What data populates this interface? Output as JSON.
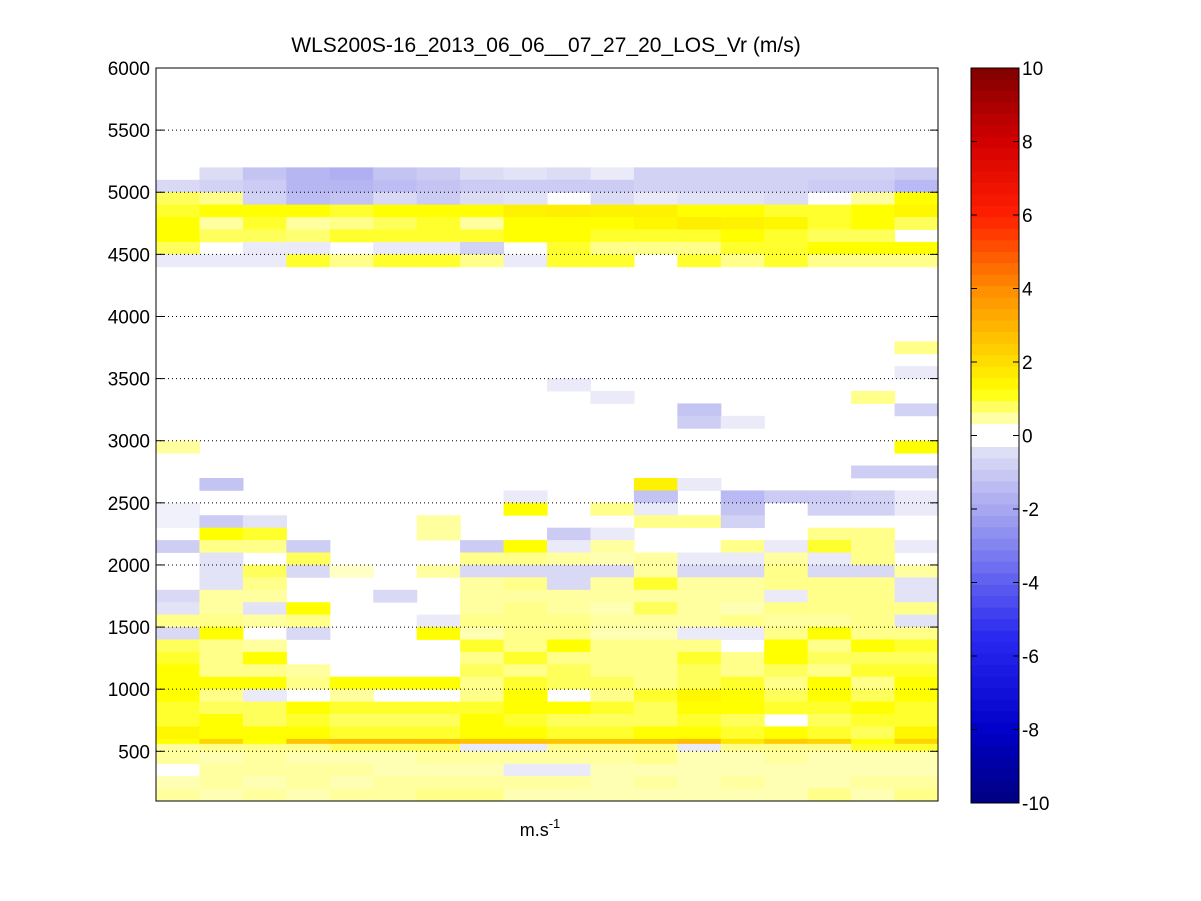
{
  "chart_data": {
    "type": "heatmap",
    "title": "WLS200S-16_2013_06_06__07_27_20_LOS_Vr (m/s)",
    "xlabel": "m.s",
    "xlabel_superscript": "-1",
    "ylabel": "",
    "ylim": [
      100,
      6000
    ],
    "y_ticks": [
      500,
      1000,
      1500,
      2000,
      2500,
      3000,
      3500,
      4000,
      4500,
      5000,
      5500,
      6000
    ],
    "grid": "dotted horizontal lines at y ticks",
    "colorbar": {
      "label": "",
      "range": [
        -10,
        10
      ],
      "ticks": [
        -10,
        -8,
        -6,
        -4,
        -2,
        0,
        2,
        4,
        6,
        8,
        10
      ],
      "colormap": "blue-white-yellow-red (diverging)"
    },
    "num_columns": 18,
    "bands": [
      {
        "y0": 5100,
        "y1": 5200,
        "values": [
          0,
          -0.5,
          -1.2,
          -1.6,
          -1.8,
          -1.2,
          -1,
          -0.5,
          -0.4,
          -0.5,
          -0.3,
          -0.8,
          -0.8,
          -0.8,
          -0.8,
          -0.8,
          -0.8,
          -1
        ]
      },
      {
        "y0": 5000,
        "y1": 5100,
        "values": [
          -0.6,
          -0.8,
          -1,
          -1.6,
          -1.6,
          -1.4,
          -1.2,
          -1,
          -1,
          -1,
          -1,
          -0.8,
          -0.8,
          -0.8,
          -0.8,
          -1,
          -1,
          -1.5
        ]
      },
      {
        "y0": 4900,
        "y1": 5000,
        "values": [
          0.8,
          0.6,
          -0.8,
          -1.4,
          -1.2,
          -0.6,
          -1,
          -0.5,
          -0.4,
          0,
          -0.5,
          -0.3,
          -0.4,
          -0.4,
          -0.5,
          0,
          0.5,
          1.2
        ]
      },
      {
        "y0": 4800,
        "y1": 4900,
        "values": [
          1,
          1.2,
          1.2,
          1.2,
          1,
          1.2,
          1.2,
          1.2,
          1.5,
          1.6,
          1.5,
          1.5,
          1.2,
          1.2,
          1,
          1,
          1.2,
          1.4
        ]
      },
      {
        "y0": 4700,
        "y1": 4800,
        "values": [
          1.2,
          0.5,
          1,
          0.5,
          0.6,
          0.8,
          1,
          0.5,
          1.2,
          1.2,
          1.2,
          1.4,
          1.6,
          1.5,
          1.4,
          1,
          1.2,
          0.8
        ]
      },
      {
        "y0": 4600,
        "y1": 4700,
        "values": [
          1.2,
          0.8,
          0.8,
          0.7,
          1,
          1,
          1,
          1,
          1.2,
          1.2,
          1,
          1,
          1,
          1.2,
          1,
          0.8,
          0.8,
          0
        ]
      },
      {
        "y0": 4500,
        "y1": 4600,
        "values": [
          0.8,
          0,
          -0.3,
          -0.3,
          0,
          -0.3,
          -0.3,
          -0.8,
          0,
          1,
          0.6,
          0.6,
          0.6,
          1,
          1,
          1.2,
          1.2,
          1.2
        ]
      },
      {
        "y0": 4400,
        "y1": 4500,
        "values": [
          -0.3,
          -0.3,
          -0.3,
          1,
          0.6,
          1,
          1,
          0.6,
          -0.3,
          1,
          1,
          0,
          1,
          0.6,
          1,
          0.6,
          0.6,
          0.6
        ]
      },
      {
        "y0": 3700,
        "y1": 3800,
        "values": [
          0,
          0,
          0,
          0,
          0,
          0,
          0,
          0,
          0,
          0,
          0,
          0,
          0,
          0,
          0,
          0,
          0,
          0.6
        ]
      },
      {
        "y0": 3500,
        "y1": 3600,
        "values": [
          0,
          0,
          0,
          0,
          0,
          0,
          0,
          0,
          0,
          0,
          0,
          0,
          0,
          0,
          0,
          0,
          0,
          -0.3
        ]
      },
      {
        "y0": 3400,
        "y1": 3500,
        "values": [
          0,
          0,
          0,
          0,
          0,
          0,
          0,
          0,
          0,
          -0.3,
          0,
          0,
          0,
          0,
          0,
          0,
          0,
          0
        ]
      },
      {
        "y0": 3300,
        "y1": 3400,
        "values": [
          0,
          0,
          0,
          0,
          0,
          0,
          0,
          0,
          0,
          0,
          -0.3,
          0,
          0,
          0,
          0,
          0,
          0.6,
          0
        ]
      },
      {
        "y0": 3200,
        "y1": 3300,
        "values": [
          0,
          0,
          0,
          0,
          0,
          0,
          0,
          0,
          0,
          0,
          0,
          0,
          -1.2,
          0,
          0,
          0,
          0,
          -0.8
        ]
      },
      {
        "y0": 3100,
        "y1": 3200,
        "values": [
          0,
          0,
          0,
          0,
          0,
          0,
          0,
          0,
          0,
          0,
          0,
          0,
          -0.9,
          -0.3,
          0,
          0,
          0,
          0
        ]
      },
      {
        "y0": 2900,
        "y1": 3000,
        "values": [
          0.5,
          0,
          0,
          0,
          0,
          0,
          0,
          0,
          0,
          0,
          0,
          0,
          0,
          0,
          0,
          0,
          0,
          1.2
        ]
      },
      {
        "y0": 2700,
        "y1": 2800,
        "values": [
          0,
          0,
          0,
          0,
          0,
          0,
          0,
          0,
          0,
          0,
          0,
          0,
          0,
          0,
          0,
          0,
          -0.9,
          -0.9
        ]
      },
      {
        "y0": 2600,
        "y1": 2700,
        "values": [
          0,
          -1.2,
          0,
          0,
          0,
          0,
          0,
          0,
          0,
          0,
          0,
          1.5,
          -0.3,
          0,
          0,
          0,
          0,
          0
        ]
      },
      {
        "y0": 2500,
        "y1": 2600,
        "values": [
          0,
          0,
          0,
          0,
          0,
          0,
          0,
          0,
          -0.3,
          0,
          0,
          -1.2,
          0,
          -1.5,
          -1,
          -1,
          -0.8,
          -0.3
        ]
      },
      {
        "y0": 2400,
        "y1": 2500,
        "values": [
          -0.2,
          0,
          0,
          0,
          0,
          0,
          0,
          0,
          1.2,
          0,
          0.6,
          -0.3,
          0,
          -1.2,
          0,
          -0.8,
          -0.8,
          -0.3
        ]
      },
      {
        "y0": 2300,
        "y1": 2400,
        "values": [
          -0.2,
          -1,
          -0.4,
          0,
          0,
          0,
          0.5,
          0,
          0,
          0,
          0,
          0.6,
          0.6,
          -0.8,
          0,
          0,
          0,
          0
        ]
      },
      {
        "y0": 2200,
        "y1": 2300,
        "values": [
          0,
          1.2,
          1,
          0,
          0,
          0,
          0.5,
          0,
          0,
          -1,
          -0.3,
          0,
          0,
          0,
          0,
          0.6,
          0.6,
          0
        ]
      },
      {
        "y0": 2100,
        "y1": 2200,
        "values": [
          -0.9,
          0.6,
          0.6,
          -0.9,
          0,
          0,
          0,
          -1,
          1.2,
          -0.3,
          0.5,
          0,
          0,
          0.6,
          -0.3,
          1,
          0.6,
          -0.3
        ]
      },
      {
        "y0": 2000,
        "y1": 2100,
        "values": [
          0,
          -0.4,
          0,
          0.8,
          0,
          0,
          0,
          0.6,
          0.6,
          0.5,
          0.4,
          0.5,
          -0.3,
          -0.3,
          0.5,
          -0.3,
          0.6,
          0
        ]
      },
      {
        "y0": 1900,
        "y1": 2000,
        "values": [
          0,
          -0.4,
          0.8,
          -0.6,
          0.3,
          0,
          0.5,
          -0.6,
          -0.6,
          -0.6,
          -0.6,
          0.5,
          -0.6,
          -0.6,
          0.6,
          -0.6,
          -0.6,
          0.5
        ]
      },
      {
        "y0": 1800,
        "y1": 1900,
        "values": [
          0,
          -0.4,
          0.6,
          0,
          0,
          0,
          0,
          0.5,
          0.6,
          -0.6,
          0.5,
          1,
          0.5,
          0.5,
          0.6,
          0.6,
          0.6,
          -0.4
        ]
      },
      {
        "y0": 1700,
        "y1": 1800,
        "values": [
          -0.6,
          0.5,
          0.5,
          0,
          0,
          -0.6,
          0,
          0.5,
          0.5,
          0.5,
          0.5,
          0.5,
          0.5,
          0.5,
          -0.3,
          0.6,
          0.6,
          -0.4
        ]
      },
      {
        "y0": 1600,
        "y1": 1700,
        "values": [
          -0.4,
          0.5,
          -0.4,
          1.2,
          0,
          0,
          0,
          0.5,
          0.6,
          0.5,
          0.4,
          0.8,
          0.5,
          0.4,
          0.6,
          0.6,
          0.6,
          0.6
        ]
      },
      {
        "y0": 1500,
        "y1": 1600,
        "values": [
          0.6,
          0.6,
          0.5,
          0.6,
          0,
          0,
          -0.3,
          0.6,
          0.6,
          0.6,
          0.5,
          0.5,
          0.5,
          0.6,
          0.5,
          0.5,
          0.6,
          -0.4
        ]
      },
      {
        "y0": 1400,
        "y1": 1500,
        "values": [
          -0.6,
          1.2,
          0,
          -0.6,
          0,
          0,
          1.2,
          0.4,
          0.6,
          0.6,
          0.4,
          0.4,
          -0.3,
          -0.3,
          0.6,
          1.2,
          0.6,
          0.6
        ]
      },
      {
        "y0": 1300,
        "y1": 1400,
        "values": [
          0.8,
          0.6,
          0.5,
          0,
          0,
          0,
          0,
          1,
          0.6,
          1.2,
          0.6,
          0.6,
          0.6,
          0,
          1.2,
          0.6,
          1.2,
          1
        ]
      },
      {
        "y0": 1200,
        "y1": 1300,
        "values": [
          1,
          0.6,
          1.2,
          0,
          0,
          0,
          0,
          0.6,
          1,
          0.6,
          0.6,
          0.6,
          1,
          0.6,
          1.2,
          0.8,
          0.8,
          0.8
        ]
      },
      {
        "y0": 1100,
        "y1": 1200,
        "values": [
          1.2,
          0.6,
          0.6,
          0.5,
          0,
          0,
          0,
          0.8,
          0.6,
          0.8,
          0.6,
          0.6,
          0.8,
          0.6,
          0.8,
          0.6,
          1,
          1
        ]
      },
      {
        "y0": 1000,
        "y1": 1100,
        "values": [
          1.2,
          1.2,
          1.2,
          0.6,
          1.2,
          1.2,
          1.2,
          0.6,
          1,
          0.8,
          0.8,
          0.6,
          0.8,
          1,
          0.6,
          1.2,
          0.6,
          1.2
        ]
      },
      {
        "y0": 900,
        "y1": 1000,
        "values": [
          1.2,
          0.6,
          -0.3,
          0,
          0.5,
          0,
          0,
          0.6,
          1.2,
          0,
          0.6,
          1,
          1.4,
          1.2,
          0.8,
          1.2,
          0.8,
          1.2
        ]
      },
      {
        "y0": 800,
        "y1": 900,
        "values": [
          1,
          0.8,
          0.8,
          1.2,
          1,
          1,
          1,
          1,
          1.2,
          1.2,
          1,
          0.8,
          1.2,
          1.2,
          1,
          1,
          1.2,
          1
        ]
      },
      {
        "y0": 700,
        "y1": 800,
        "values": [
          1,
          1.2,
          0.8,
          1,
          0.8,
          0.8,
          0.8,
          1.2,
          1,
          0.8,
          0.8,
          0.8,
          1,
          0.8,
          0,
          0.8,
          1,
          1
        ]
      },
      {
        "y0": 600,
        "y1": 700,
        "values": [
          1.4,
          1.2,
          1.2,
          1.2,
          1,
          1,
          1,
          1.2,
          1.2,
          1,
          1,
          1.2,
          1.2,
          1,
          1.2,
          1,
          0.8,
          1.4
        ]
      },
      {
        "y0": 560,
        "y1": 600,
        "values": [
          1.2,
          2.2,
          1.2,
          2.6,
          2.8,
          2.8,
          2.8,
          2.6,
          2.6,
          2.6,
          2.6,
          2.6,
          2.8,
          1.8,
          2.4,
          2.2,
          1.2,
          2.2
        ]
      },
      {
        "y0": 500,
        "y1": 560,
        "values": [
          0.5,
          0.6,
          0.6,
          0.6,
          0.8,
          0.8,
          0.8,
          -0.3,
          -0.3,
          0.6,
          0.6,
          0.6,
          -0.3,
          0.6,
          0.6,
          0.6,
          1,
          1
        ]
      },
      {
        "y0": 400,
        "y1": 500,
        "values": [
          0.5,
          0.4,
          0.5,
          0.4,
          0.4,
          0.4,
          0.5,
          0.5,
          0.5,
          0.5,
          0.5,
          0.6,
          0.4,
          0.4,
          0.5,
          0.4,
          0.4,
          0.4
        ]
      },
      {
        "y0": 300,
        "y1": 400,
        "values": [
          0,
          0.5,
          0.5,
          0.5,
          0.5,
          0.4,
          0.4,
          0.4,
          -0.3,
          -0.3,
          0.4,
          0.4,
          0.4,
          0.4,
          0.4,
          0.4,
          0.4,
          0.4
        ]
      },
      {
        "y0": 200,
        "y1": 300,
        "values": [
          0.4,
          0.5,
          0.4,
          0.5,
          0.4,
          0.5,
          0.5,
          0.5,
          0.5,
          0.5,
          0.4,
          0.5,
          0.4,
          0.5,
          0.4,
          0.4,
          0.5,
          0.5
        ]
      },
      {
        "y0": 100,
        "y1": 200,
        "values": [
          0.5,
          0.4,
          0.5,
          0.4,
          0.5,
          0.5,
          0.6,
          0.6,
          0.4,
          0.4,
          0.4,
          0.4,
          0.4,
          0.4,
          0.4,
          0.6,
          0.4,
          0.6
        ]
      }
    ]
  }
}
